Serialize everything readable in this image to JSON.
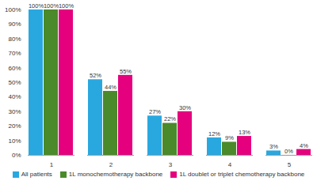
{
  "chart_data": {
    "type": "bar",
    "categories": [
      "1",
      "2",
      "3",
      "4",
      "5"
    ],
    "series": [
      {
        "name": "All patients",
        "color": "#29a8e0",
        "values": [
          100,
          52,
          27,
          12,
          3
        ],
        "value_labels": [
          "100%",
          "52%",
          "27%",
          "12%",
          "3%"
        ]
      },
      {
        "name": "1L monochemotherapy backbone",
        "color": "#4a8a2a",
        "values": [
          100,
          44,
          22,
          9,
          0
        ],
        "value_labels": [
          "100%",
          "44%",
          "22%",
          "9%",
          "0%"
        ]
      },
      {
        "name": "1L doublet or triplet chemotherapy backbone",
        "color": "#e5007e",
        "values": [
          100,
          55,
          30,
          13,
          4
        ],
        "value_labels": [
          "100%",
          "55%",
          "30%",
          "13%",
          "4%"
        ]
      }
    ],
    "ylim": [
      0,
      100
    ],
    "yticks": [
      {
        "value": 0,
        "label": "0%"
      },
      {
        "value": 10,
        "label": "10%"
      },
      {
        "value": 20,
        "label": "20%"
      },
      {
        "value": 30,
        "label": "30%"
      },
      {
        "value": 40,
        "label": "40%"
      },
      {
        "value": 50,
        "label": "50%"
      },
      {
        "value": 60,
        "label": "60%"
      },
      {
        "value": 70,
        "label": "70%"
      },
      {
        "value": 80,
        "label": "80%"
      },
      {
        "value": 90,
        "label": "90%"
      },
      {
        "value": 100,
        "label": "100%"
      }
    ],
    "grid": false,
    "data_labels": true,
    "legend": "bottom"
  }
}
